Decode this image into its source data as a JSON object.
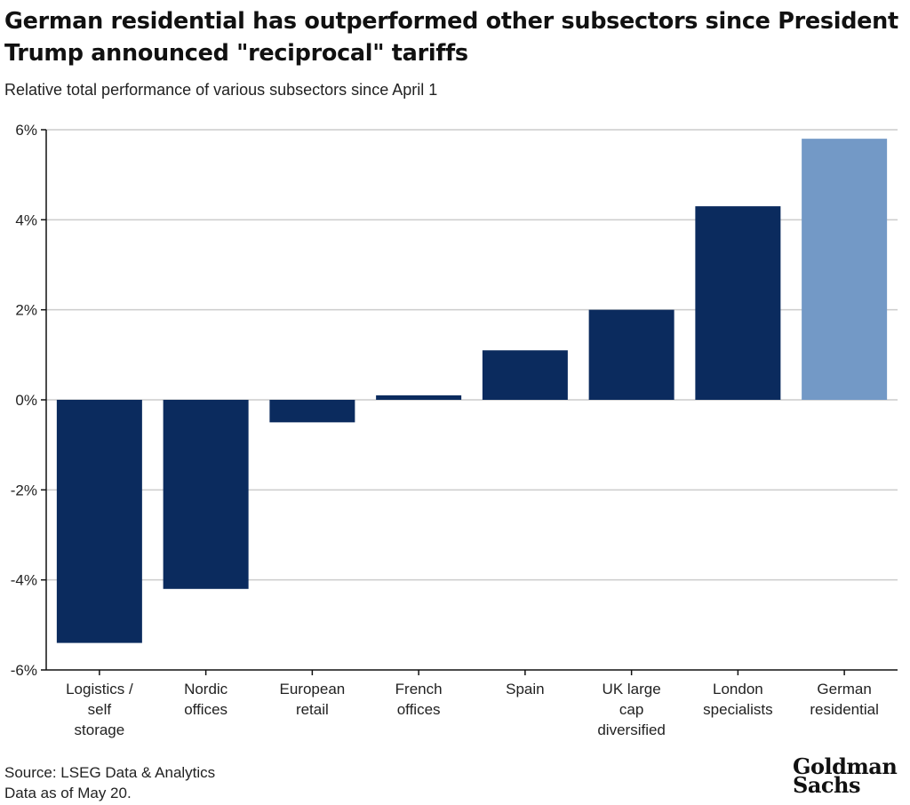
{
  "chart_data": {
    "type": "bar",
    "title": "German residential has outperformed other subsectors since President Trump announced \"reciprocal\" tariffs",
    "subtitle": "Relative total performance of various subsectors since April 1",
    "categories": [
      [
        "Logistics /",
        "self",
        "storage"
      ],
      [
        "Nordic",
        "offices"
      ],
      [
        "European",
        "retail"
      ],
      [
        "French",
        "offices"
      ],
      [
        "Spain"
      ],
      [
        "UK large",
        "cap",
        "diversified"
      ],
      [
        "London",
        "specialists"
      ],
      [
        "German",
        "residential"
      ]
    ],
    "values": [
      -5.4,
      -4.2,
      -0.5,
      0.1,
      1.1,
      2.0,
      4.3,
      5.8
    ],
    "yticks": [
      6,
      4,
      2,
      0,
      -2,
      -4,
      -6
    ],
    "ytick_labels": [
      "6%",
      "4%",
      "2%",
      "0%",
      "-2%",
      "-4%",
      "-6%"
    ],
    "ylim": [
      -6,
      6
    ],
    "xlabel": "",
    "ylabel": "",
    "grid": true,
    "highlight_index": 7
  },
  "colors": {
    "bar": "#0b2b5e",
    "highlight": "#7399c6",
    "grid": "#cccccc",
    "axis": "#111111"
  },
  "footer": {
    "source": "Source: LSEG Data & Analytics",
    "as_of": "Data as of May 20."
  },
  "logo": {
    "line1": "Goldman",
    "line2": "Sachs"
  }
}
